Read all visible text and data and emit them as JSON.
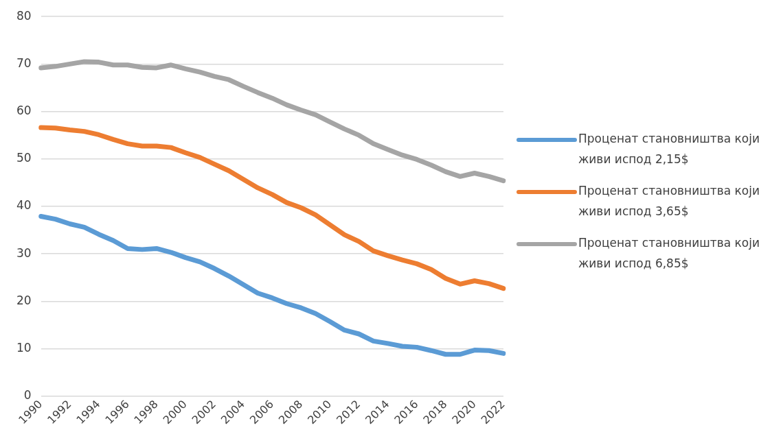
{
  "chart_data": {
    "type": "line",
    "categories": [
      "1990",
      null,
      "1992",
      null,
      "1994",
      null,
      "1996",
      null,
      "1998",
      null,
      "2000",
      null,
      "2002",
      null,
      "2004",
      null,
      "2006",
      null,
      "2008",
      null,
      "2010",
      null,
      "2012",
      null,
      "2014",
      null,
      "2016",
      null,
      "2018",
      null,
      "2020",
      null,
      "2022"
    ],
    "series": [
      {
        "name": "Проценат становништва који живи испод 2,15$",
        "color": "#5b9bd5",
        "values": [
          37.9,
          37.3,
          36.3,
          35.6,
          34.1,
          32.8,
          31.1,
          30.9,
          31.1,
          30.3,
          29.2,
          28.3,
          26.9,
          25.3,
          23.5,
          21.7,
          20.7,
          19.5,
          18.6,
          17.4,
          15.7,
          13.9,
          13.1,
          11.6,
          11.1,
          10.5,
          10.3,
          9.6,
          8.8,
          8.8,
          9.7,
          9.6,
          9.0
        ]
      },
      {
        "name": "Проценат становништва који живи испод 3,65$",
        "color": "#ed7d31",
        "values": [
          56.6,
          56.5,
          56.1,
          55.8,
          55.1,
          54.1,
          53.2,
          52.7,
          52.7,
          52.4,
          51.3,
          50.3,
          48.9,
          47.5,
          45.7,
          43.9,
          42.5,
          40.8,
          39.7,
          38.2,
          36.1,
          34.0,
          32.6,
          30.6,
          29.6,
          28.7,
          27.9,
          26.7,
          24.8,
          23.6,
          24.3,
          23.7,
          22.7
        ]
      },
      {
        "name": "Проценат становништва који живи испод 6,85$",
        "color": "#a5a5a5",
        "values": [
          69.2,
          69.5,
          70.0,
          70.5,
          70.4,
          69.8,
          69.8,
          69.3,
          69.2,
          69.8,
          69.0,
          68.3,
          67.4,
          66.7,
          65.3,
          64.0,
          62.8,
          61.4,
          60.3,
          59.3,
          57.8,
          56.3,
          55.0,
          53.2,
          52.0,
          50.8,
          49.9,
          48.7,
          47.3,
          46.3,
          47.0,
          46.3,
          45.4
        ]
      }
    ],
    "ylim": [
      0,
      80
    ],
    "yticks": [
      0,
      10,
      20,
      30,
      40,
      50,
      60,
      70,
      80
    ],
    "grid": "y",
    "legend": "right",
    "marker": "none",
    "line_style": "solid"
  }
}
